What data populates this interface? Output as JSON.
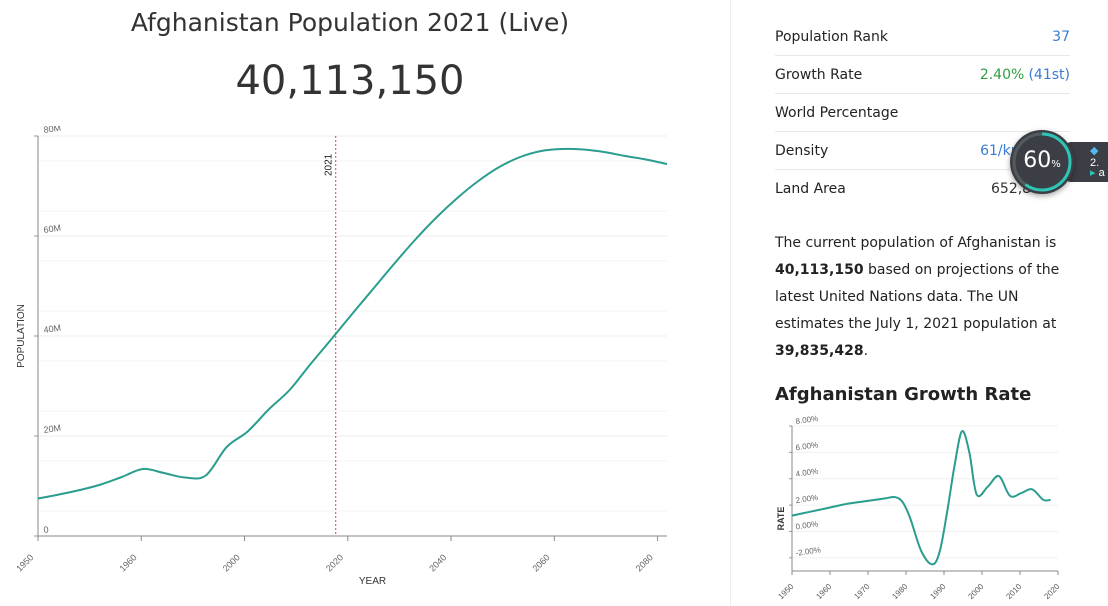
{
  "header": {
    "title": "Afghanistan Population 2021 (Live)",
    "live_population": "40,113,150"
  },
  "stats": [
    {
      "label": "Population Rank",
      "value": "37"
    },
    {
      "label": "Growth Rate",
      "value": "2.40%",
      "rank": "(41st)"
    },
    {
      "label": "World Percentage",
      "value": ""
    },
    {
      "label": "Density",
      "value": "61/km²"
    },
    {
      "label": "Land Area",
      "value": "652,86"
    }
  ],
  "description": {
    "part1": "The current population of Afghanistan is ",
    "bold1": "40,113,150",
    "part2": " based on projections of the latest United Nations data. The UN estimates the July 1, 2021 population at ",
    "bold2": "39,835,428",
    "part3": "."
  },
  "growth_section_title": "Afghanistan Growth Rate",
  "widget": {
    "percent": "60",
    "percent_unit": "%",
    "side_top": "2.",
    "side_bottom": "a"
  },
  "chart_data": [
    {
      "type": "line",
      "xlabel": "YEAR",
      "ylabel": "POPULATION",
      "xlim": [
        1950,
        2100
      ],
      "ylim": [
        0,
        80000000
      ],
      "x_ticks": [
        "1950",
        "1960",
        "2000",
        "2020",
        "2040",
        "2060",
        "2080"
      ],
      "y_ticks": [
        "0",
        "20M",
        "40M",
        "60M",
        "80M"
      ],
      "marker": {
        "x": 2021,
        "label": "2021"
      },
      "grid": true,
      "series": [
        {
          "x": [
            1950,
            1955,
            1960,
            1965,
            1970,
            1975,
            1980,
            1985,
            1990,
            1995,
            2000,
            2005,
            2010,
            2015,
            2020,
            2025,
            2030,
            2035,
            2040,
            2045,
            2050,
            2055,
            2060,
            2065,
            2070,
            2075,
            2080,
            2085,
            2090,
            2095,
            2100
          ],
          "y": [
            7500000,
            8300000,
            9200000,
            10300000,
            11800000,
            13400000,
            12600000,
            11700000,
            12100000,
            17800000,
            20900000,
            25300000,
            29200000,
            34400000,
            39400000,
            44500000,
            49500000,
            54500000,
            59300000,
            63700000,
            67600000,
            71000000,
            73800000,
            75800000,
            77000000,
            77400000,
            77300000,
            76800000,
            76000000,
            75300000,
            74400000
          ]
        }
      ]
    },
    {
      "type": "line",
      "xlabel": "",
      "ylabel": "RATE",
      "xlim": [
        1950,
        2022
      ],
      "ylim": [
        -3,
        8
      ],
      "x_ticks": [
        "1950",
        "1960",
        "1970",
        "1980",
        "1990",
        "2000",
        "2010",
        "2020"
      ],
      "y_ticks": [
        "-2.00%",
        "0.00%",
        "2.00%",
        "4.00%",
        "6.00%",
        "8.00%"
      ],
      "grid": true,
      "series": [
        {
          "x": [
            1950,
            1955,
            1960,
            1965,
            1970,
            1975,
            1978,
            1980,
            1982,
            1985,
            1988,
            1990,
            1992,
            1994,
            1996,
            1998,
            2000,
            2003,
            2006,
            2009,
            2012,
            2015,
            2018,
            2020
          ],
          "y": [
            1.2,
            1.5,
            1.8,
            2.1,
            2.3,
            2.5,
            2.6,
            2.2,
            1.0,
            -1.5,
            -2.5,
            -1.5,
            1.5,
            5.0,
            7.6,
            6.0,
            2.8,
            3.4,
            4.2,
            2.7,
            2.9,
            3.2,
            2.4,
            2.4
          ]
        }
      ]
    }
  ]
}
